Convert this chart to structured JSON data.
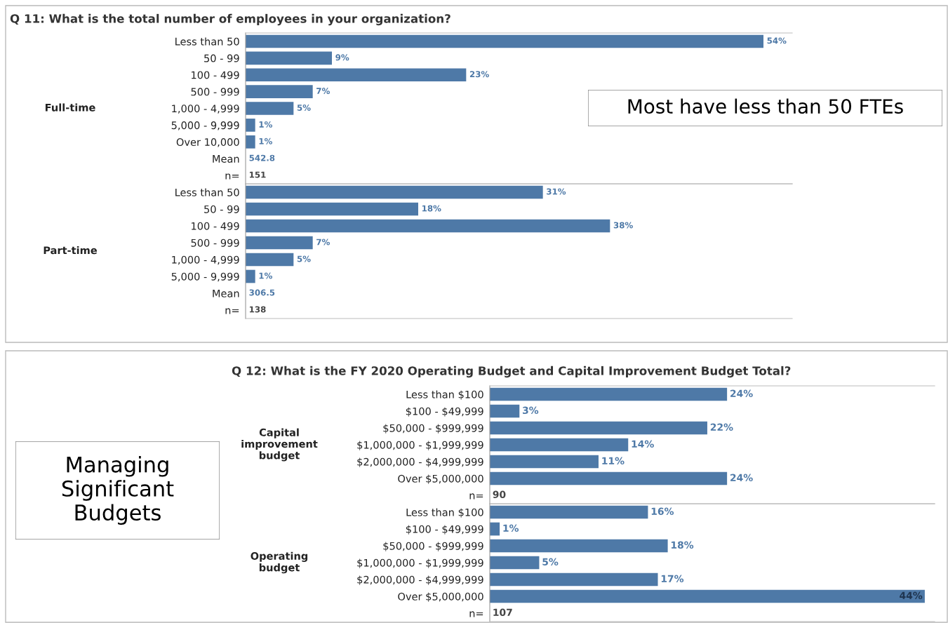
{
  "chart_data": [
    {
      "type": "bar",
      "orientation": "horizontal",
      "title": "Q 11: What is the total number of employees in your organization?",
      "ylabel": "Full-time",
      "categories": [
        "Less than 50",
        "50 - 99",
        "100 - 499",
        "500 - 999",
        "1,000 - 4,999",
        "5,000 - 9,999",
        "Over 10,000",
        "Mean",
        "n="
      ],
      "values": [
        54,
        9,
        23,
        7,
        5,
        1,
        1,
        null,
        null
      ],
      "value_labels": [
        "54%",
        "9%",
        "23%",
        "7%",
        "5%",
        "1%",
        "1%",
        "542.8",
        "151"
      ],
      "color": "#4e79a7",
      "xlim": [
        0,
        57
      ],
      "tick_labels": "y",
      "grid": false,
      "legend": false
    },
    {
      "type": "bar",
      "orientation": "horizontal",
      "ylabel": "Part-time",
      "categories": [
        "Less than 50",
        "50 - 99",
        "100 - 499",
        "500 - 999",
        "1,000 - 4,999",
        "5,000 - 9,999",
        "Mean",
        "n="
      ],
      "values": [
        31,
        18,
        38,
        7,
        5,
        1,
        null,
        null
      ],
      "value_labels": [
        "31%",
        "18%",
        "38%",
        "7%",
        "5%",
        "1%",
        "306.5",
        "138"
      ],
      "color": "#4e79a7",
      "xlim": [
        0,
        57
      ],
      "tick_labels": "y",
      "grid": false,
      "legend": false
    },
    {
      "type": "other",
      "annotations": [
        "Most have less than 50 FTEs"
      ]
    },
    {
      "type": "other",
      "annotations": [
        "Managing\nSignificant\nBudgets"
      ]
    },
    {
      "type": "bar",
      "orientation": "horizontal",
      "title": "Q 12: What is the FY 2020 Operating Budget and Capital Improvement Budget Total?",
      "ylabel": "Capital\nimprovement\nbudget",
      "categories": [
        "Less than $100",
        "$100 - $49,999",
        "$50,000 - $999,999",
        "$1,000,000 - $1,999,999",
        "$2,000,000 - $4,999,999",
        "Over $5,000,000",
        "n="
      ],
      "values": [
        24,
        3,
        22,
        14,
        11,
        24,
        null
      ],
      "value_labels": [
        "24%",
        "3%",
        "22%",
        "14%",
        "11%",
        "24%",
        "90"
      ],
      "color": "#4e79a7",
      "xlim": [
        0,
        45
      ],
      "tick_labels": "y",
      "grid": false,
      "legend": false
    },
    {
      "type": "bar",
      "orientation": "horizontal",
      "ylabel": "Operating\nbudget",
      "categories": [
        "Less than $100",
        "$100 - $49,999",
        "$50,000 - $999,999",
        "$1,000,000 - $1,999,999",
        "$2,000,000 - $4,999,999",
        "Over $5,000,000",
        "n="
      ],
      "values": [
        16,
        1,
        18,
        5,
        17,
        44,
        null
      ],
      "value_labels": [
        "16%",
        "1%",
        "18%",
        "5%",
        "17%",
        "44%",
        "107"
      ],
      "color": "#4e79a7",
      "xlim": [
        0,
        45
      ],
      "tick_labels": "y",
      "grid": false,
      "legend": false
    }
  ]
}
